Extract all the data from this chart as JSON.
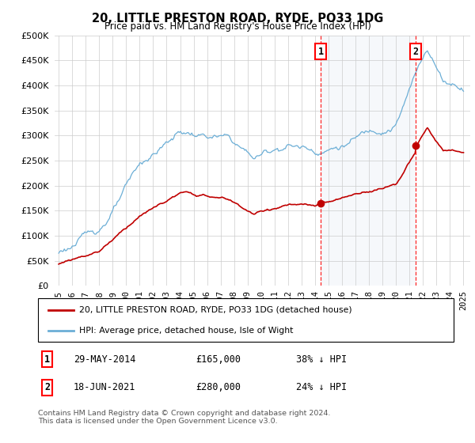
{
  "title": "20, LITTLE PRESTON ROAD, RYDE, PO33 1DG",
  "subtitle": "Price paid vs. HM Land Registry's House Price Index (HPI)",
  "ytick_values": [
    0,
    50000,
    100000,
    150000,
    200000,
    250000,
    300000,
    350000,
    400000,
    450000,
    500000
  ],
  "ylim": [
    0,
    500000
  ],
  "xlim_start": 1994.7,
  "xlim_end": 2025.5,
  "hpi_color": "#6baed6",
  "price_color": "#c00000",
  "transaction1_x": 2014.41,
  "transaction1_y": 165000,
  "transaction2_x": 2021.46,
  "transaction2_y": 280000,
  "legend_line1": "20, LITTLE PRESTON ROAD, RYDE, PO33 1DG (detached house)",
  "legend_line2": "HPI: Average price, detached house, Isle of Wight",
  "table_row1_num": "1",
  "table_row1_date": "29-MAY-2014",
  "table_row1_price": "£165,000",
  "table_row1_hpi": "38% ↓ HPI",
  "table_row2_num": "2",
  "table_row2_date": "18-JUN-2021",
  "table_row2_price": "£280,000",
  "table_row2_hpi": "24% ↓ HPI",
  "footnote": "Contains HM Land Registry data © Crown copyright and database right 2024.\nThis data is licensed under the Open Government Licence v3.0.",
  "shading_color": "#dce6f1"
}
